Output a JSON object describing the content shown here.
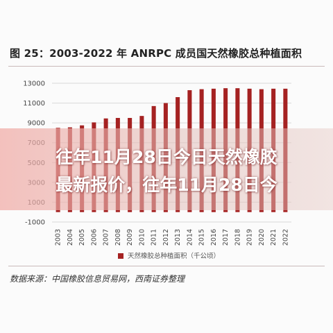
{
  "title": "图 25：2003-2022 年 ANRPC 成员国天然橡胶总种植面积",
  "source": "数据来源：中国橡胶信息贸易网，西南证券整理",
  "overlay": {
    "line1": "往年11月28日今日天然橡胶",
    "line2": "最新报价，往年11月28日今"
  },
  "colors": {
    "bar": "#a52222",
    "grid": "#d9d9d9",
    "overlay": "#f0aaa5"
  },
  "chart_data": {
    "type": "bar",
    "categories": [
      "2003",
      "2004",
      "2005",
      "2006",
      "2007",
      "2008",
      "2009",
      "2010",
      "2011",
      "2012",
      "2013",
      "2014",
      "2015",
      "2016",
      "2017",
      "2018",
      "2019",
      "2020",
      "2021",
      "2022"
    ],
    "series": [
      {
        "name": "天然橡胶总种植面积（千公顷）",
        "values": [
          8500,
          8550,
          8750,
          9050,
          9450,
          9500,
          9500,
          9700,
          10700,
          11000,
          11600,
          12300,
          12400,
          12450,
          12500,
          12500,
          12450,
          12400,
          12450,
          12450
        ]
      }
    ],
    "ylim": [
      -1000,
      13000
    ],
    "yticks": [
      -1000,
      1000,
      3000,
      5000,
      7000,
      9000,
      11000,
      13000
    ],
    "grid": true,
    "legend": "bottom"
  }
}
